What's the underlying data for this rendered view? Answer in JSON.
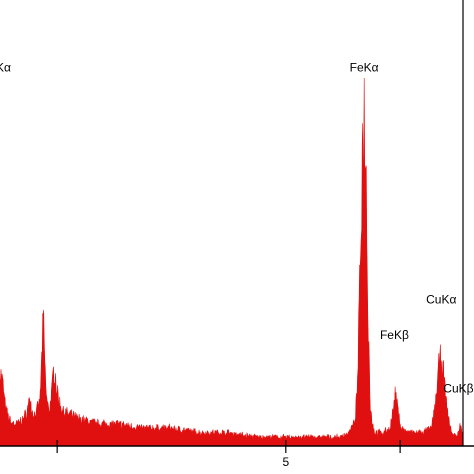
{
  "chart_data": {
    "type": "area",
    "title": "",
    "xlabel": "",
    "ylabel": "",
    "xlim": [
      0.0,
      8.1
    ],
    "ylim": [
      0,
      100
    ],
    "x_ticks": [
      {
        "value": 1.0,
        "label": ""
      },
      {
        "value": 5.0,
        "label": "5"
      },
      {
        "value": 7.0,
        "label": ""
      }
    ],
    "colors": {
      "spectrum": "#e01010",
      "axis": "#000000"
    },
    "series": [
      {
        "points": [
          [
            0.0,
            17
          ],
          [
            0.05,
            14
          ],
          [
            0.1,
            8
          ],
          [
            0.2,
            5
          ],
          [
            0.3,
            5
          ],
          [
            0.4,
            6
          ],
          [
            0.45,
            7
          ],
          [
            0.5,
            9
          ],
          [
            0.52,
            12
          ],
          [
            0.55,
            8
          ],
          [
            0.6,
            7
          ],
          [
            0.65,
            8
          ],
          [
            0.7,
            10
          ],
          [
            0.73,
            20
          ],
          [
            0.76,
            29
          ],
          [
            0.79,
            16
          ],
          [
            0.82,
            10
          ],
          [
            0.86,
            8
          ],
          [
            0.9,
            11
          ],
          [
            0.93,
            16
          ],
          [
            0.96,
            17
          ],
          [
            0.99,
            13
          ],
          [
            1.03,
            10
          ],
          [
            1.1,
            8
          ],
          [
            1.2,
            7
          ],
          [
            1.4,
            6
          ],
          [
            1.7,
            5
          ],
          [
            2.0,
            5
          ],
          [
            2.5,
            4
          ],
          [
            3.0,
            4
          ],
          [
            3.5,
            3
          ],
          [
            4.0,
            3
          ],
          [
            4.5,
            2
          ],
          [
            5.0,
            2
          ],
          [
            5.5,
            2
          ],
          [
            5.95,
            2
          ],
          [
            6.1,
            3
          ],
          [
            6.2,
            5
          ],
          [
            6.25,
            12
          ],
          [
            6.3,
            40
          ],
          [
            6.34,
            66
          ],
          [
            6.37,
            75
          ],
          [
            6.4,
            65
          ],
          [
            6.44,
            30
          ],
          [
            6.48,
            8
          ],
          [
            6.55,
            3
          ],
          [
            6.7,
            3
          ],
          [
            6.82,
            4
          ],
          [
            6.88,
            8
          ],
          [
            6.92,
            12
          ],
          [
            6.96,
            8
          ],
          [
            7.02,
            4
          ],
          [
            7.15,
            3
          ],
          [
            7.4,
            3
          ],
          [
            7.55,
            4
          ],
          [
            7.62,
            10
          ],
          [
            7.68,
            18
          ],
          [
            7.72,
            20
          ],
          [
            7.76,
            16
          ],
          [
            7.82,
            8
          ],
          [
            7.9,
            3
          ],
          [
            8.0,
            2
          ],
          [
            8.03,
            4
          ],
          [
            8.05,
            5
          ],
          [
            8.08,
            3
          ],
          [
            8.1,
            2
          ]
        ]
      }
    ],
    "annotations": [
      {
        "text": "FeKα",
        "x": 6.37,
        "y": 84
      },
      {
        "text": "FeKβ",
        "x": 6.9,
        "y": 24
      },
      {
        "text": "CuKα",
        "x": 7.72,
        "y": 32
      },
      {
        "text": "CuKβ",
        "x": 8.02,
        "y": 12
      },
      {
        "text": "Kα",
        "x": 0.06,
        "y": 84
      }
    ]
  }
}
